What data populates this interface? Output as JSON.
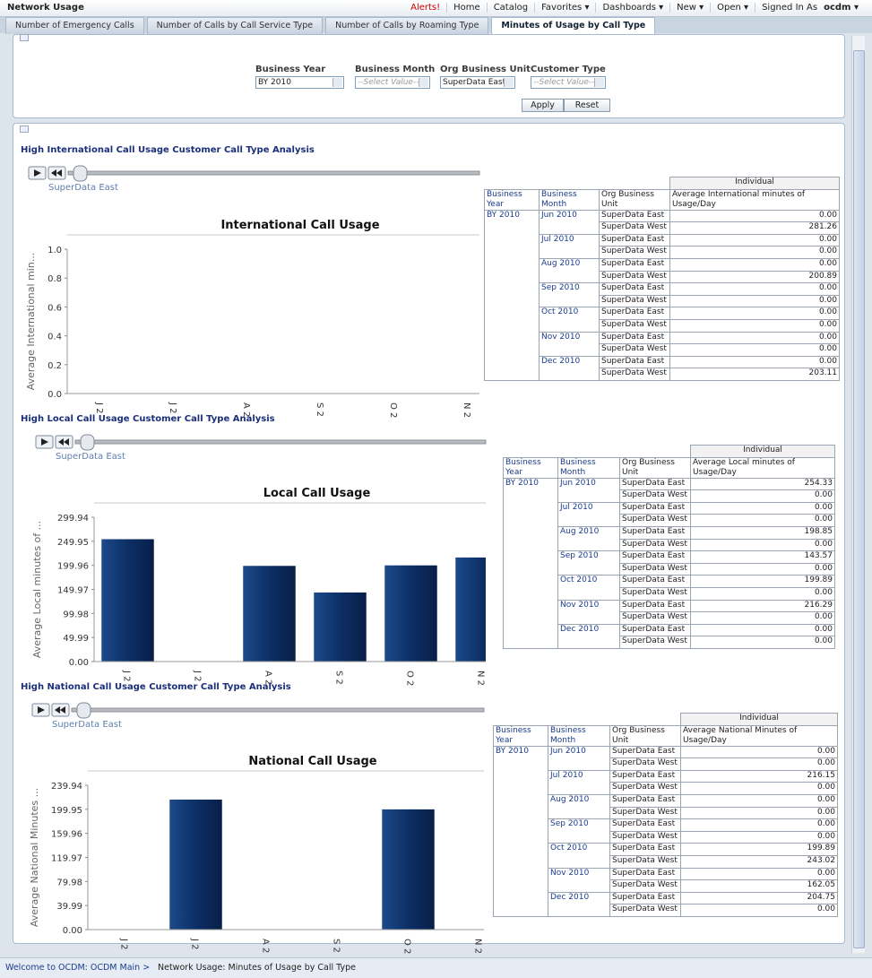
{
  "header": {
    "title": "Network Usage",
    "alerts": "Alerts!",
    "menu": [
      "Home",
      "Catalog",
      "Favorites",
      "Dashboards",
      "New",
      "Open"
    ],
    "signed_in": "Signed In As",
    "user": "ocdm"
  },
  "tabs": [
    "Number of Emergency Calls",
    "Number of Calls by Call Service Type",
    "Number of Calls by Roaming Type",
    "Minutes of Usage by Call Type"
  ],
  "prompts": {
    "fields": [
      {
        "label": "Business Year",
        "value": "BY 2010"
      },
      {
        "label": "Business Month",
        "value": "--Select Value--"
      },
      {
        "label": "Org Business Unit",
        "value": "SuperData East"
      },
      {
        "label": "Customer Type",
        "value": "--Select Value--"
      }
    ],
    "buttons": [
      "Apply",
      "Reset"
    ]
  },
  "sections": [
    {
      "title": "High International Call Usage Customer Call Type Analysis",
      "slider_label": "SuperData East",
      "chart": {
        "type": "bar",
        "title": "International Call Usage",
        "y_label": "Average International min...",
        "categories": [
          "J 2",
          "J 2",
          "A 2",
          "S 2",
          "O 2",
          "N 2"
        ],
        "values": [
          0,
          0,
          0,
          0,
          0,
          0
        ],
        "color": "#0d2f66",
        "ylim": [
          0,
          1
        ],
        "yticks": [
          {
            "value": 0,
            "label": "0.0"
          },
          0.2,
          0.4,
          0.6,
          0.8,
          {
            "value": 1,
            "label": "1.0"
          }
        ]
      },
      "table": {
        "group_header": "Individual",
        "columns": [
          "Business Year",
          "Business Month",
          "Org Business Unit",
          "Average International minutes of Usage/Day"
        ],
        "year": "BY 2010",
        "months": [
          {
            "month": "Jun 2010",
            "rows": [
              [
                "SuperData East",
                "0.00"
              ],
              [
                "SuperData West",
                "281.26"
              ]
            ]
          },
          {
            "month": "Jul 2010",
            "rows": [
              [
                "SuperData East",
                "0.00"
              ],
              [
                "SuperData West",
                "0.00"
              ]
            ]
          },
          {
            "month": "Aug 2010",
            "rows": [
              [
                "SuperData East",
                "0.00"
              ],
              [
                "SuperData West",
                "200.89"
              ]
            ]
          },
          {
            "month": "Sep 2010",
            "rows": [
              [
                "SuperData East",
                "0.00"
              ],
              [
                "SuperData West",
                "0.00"
              ]
            ]
          },
          {
            "month": "Oct 2010",
            "rows": [
              [
                "SuperData East",
                "0.00"
              ],
              [
                "SuperData West",
                "0.00"
              ]
            ]
          },
          {
            "month": "Nov 2010",
            "rows": [
              [
                "SuperData East",
                "0.00"
              ],
              [
                "SuperData West",
                "0.00"
              ]
            ]
          },
          {
            "month": "Dec 2010",
            "rows": [
              [
                "SuperData East",
                "0.00"
              ],
              [
                "SuperData West",
                "203.11"
              ]
            ]
          }
        ]
      }
    },
    {
      "title": "High Local Call Usage Customer Call Type Analysis",
      "slider_label": "SuperData East",
      "chart": {
        "type": "bar",
        "title": "Local Call Usage",
        "y_label": "Average Local minutes of ...",
        "categories": [
          "J 2",
          "J 2",
          "A 2",
          "S 2",
          "O 2",
          "N 2"
        ],
        "values": [
          254.33,
          0,
          198.85,
          143.57,
          199.89,
          216.29
        ],
        "color": "#0d2f66",
        "ylim": [
          0,
          299.94
        ],
        "yticks": [
          {
            "value": 0,
            "label": "0.00"
          },
          49.99,
          99.98,
          149.97,
          199.96,
          249.95,
          299.94
        ]
      },
      "table": {
        "group_header": "Individual",
        "columns": [
          "Business Year",
          "Business Month",
          "Org Business Unit",
          "Average Local minutes of Usage/Day"
        ],
        "year": "BY 2010",
        "months": [
          {
            "month": "Jun 2010",
            "rows": [
              [
                "SuperData East",
                "254.33"
              ],
              [
                "SuperData West",
                "0.00"
              ]
            ]
          },
          {
            "month": "Jul 2010",
            "rows": [
              [
                "SuperData East",
                "0.00"
              ],
              [
                "SuperData West",
                "0.00"
              ]
            ]
          },
          {
            "month": "Aug 2010",
            "rows": [
              [
                "SuperData East",
                "198.85"
              ],
              [
                "SuperData West",
                "0.00"
              ]
            ]
          },
          {
            "month": "Sep 2010",
            "rows": [
              [
                "SuperData East",
                "143.57"
              ],
              [
                "SuperData West",
                "0.00"
              ]
            ]
          },
          {
            "month": "Oct 2010",
            "rows": [
              [
                "SuperData East",
                "199.89"
              ],
              [
                "SuperData West",
                "0.00"
              ]
            ]
          },
          {
            "month": "Nov 2010",
            "rows": [
              [
                "SuperData East",
                "216.29"
              ],
              [
                "SuperData West",
                "0.00"
              ]
            ]
          },
          {
            "month": "Dec 2010",
            "rows": [
              [
                "SuperData East",
                "0.00"
              ],
              [
                "SuperData West",
                "0.00"
              ]
            ]
          }
        ]
      }
    },
    {
      "title": "High National Call Usage Customer Call Type Analysis",
      "slider_label": "SuperData East",
      "chart": {
        "type": "bar",
        "title": "National Call Usage",
        "y_label": "Average National Minutes ...",
        "categories": [
          "J 2",
          "J 2",
          "A 2",
          "S 2",
          "O 2",
          "N 2"
        ],
        "values": [
          0,
          216.15,
          0,
          0,
          199.89,
          0
        ],
        "color": "#0d2f66",
        "ylim": [
          0,
          239.94
        ],
        "yticks": [
          {
            "value": 0,
            "label": "0.00"
          },
          39.99,
          79.98,
          119.97,
          159.96,
          199.95,
          239.94
        ]
      },
      "table": {
        "group_header": "Individual",
        "columns": [
          "Business Year",
          "Business Month",
          "Org Business Unit",
          "Average National Minutes of Usage/Day"
        ],
        "year": "BY 2010",
        "months": [
          {
            "month": "Jun 2010",
            "rows": [
              [
                "SuperData East",
                "0.00"
              ],
              [
                "SuperData West",
                "0.00"
              ]
            ]
          },
          {
            "month": "Jul 2010",
            "rows": [
              [
                "SuperData East",
                "216.15"
              ],
              [
                "SuperData West",
                "0.00"
              ]
            ]
          },
          {
            "month": "Aug 2010",
            "rows": [
              [
                "SuperData East",
                "0.00"
              ],
              [
                "SuperData West",
                "0.00"
              ]
            ]
          },
          {
            "month": "Sep 2010",
            "rows": [
              [
                "SuperData East",
                "0.00"
              ],
              [
                "SuperData West",
                "0.00"
              ]
            ]
          },
          {
            "month": "Oct 2010",
            "rows": [
              [
                "SuperData East",
                "199.89"
              ],
              [
                "SuperData West",
                "243.02"
              ]
            ]
          },
          {
            "month": "Nov 2010",
            "rows": [
              [
                "SuperData East",
                "0.00"
              ],
              [
                "SuperData West",
                "162.05"
              ]
            ]
          },
          {
            "month": "Dec 2010",
            "rows": [
              [
                "SuperData East",
                "204.75"
              ],
              [
                "SuperData West",
                "0.00"
              ]
            ]
          }
        ]
      }
    }
  ],
  "footer": {
    "path": "Welcome to OCDM: OCDM Main",
    "page": "Network Usage: Minutes of Usage by Call Type"
  }
}
